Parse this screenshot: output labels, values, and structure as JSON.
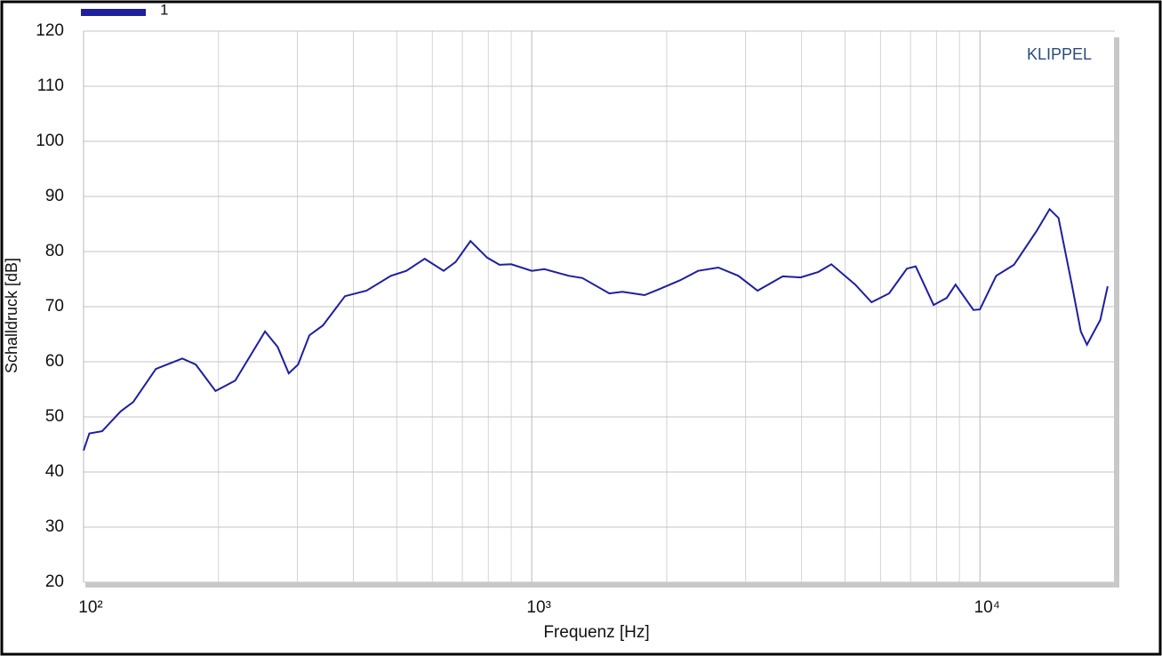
{
  "chart_data": {
    "type": "line",
    "x_label": "Frequenz [Hz]",
    "y_label": "Schalldruck  [dB]",
    "annotation": "KLIPPEL",
    "log_x": true,
    "grid": true,
    "legend": "top-left",
    "xlim": [
      100,
      20000
    ],
    "ylim": [
      20,
      120
    ],
    "xticks": [
      {
        "value": 100,
        "label": "10²"
      },
      {
        "value": 1000,
        "label": "10³"
      },
      {
        "value": 10000,
        "label": "10⁴"
      }
    ],
    "x_minor_ticks": [
      200,
      300,
      400,
      500,
      600,
      700,
      800,
      900,
      2000,
      3000,
      4000,
      5000,
      6000,
      7000,
      8000,
      9000
    ],
    "yticks": [
      20,
      30,
      40,
      50,
      60,
      70,
      80,
      90,
      100,
      110,
      120
    ],
    "x": [
      100,
      103,
      110,
      121,
      129,
      145,
      166,
      178,
      197,
      218,
      254,
      271,
      287,
      301,
      319,
      342,
      383,
      428,
      485,
      525,
      577,
      636,
      676,
      730,
      795,
      847,
      900,
      1000,
      1067,
      1210,
      1297,
      1490,
      1593,
      1785,
      1914,
      2145,
      2350,
      2608,
      2890,
      3190,
      3630,
      3980,
      4360,
      4660,
      5270,
      5730,
      6270,
      6870,
      7190,
      7880,
      8430,
      8820,
      9670,
      10000,
      10870,
      11910,
      13370,
      14300,
      14970,
      16030,
      16790,
      17330,
      18560,
      19270
    ],
    "series": [
      {
        "name": "1",
        "color": "#1f1f9e",
        "values": [
          43.9,
          47,
          47.4,
          51,
          52.7,
          58.7,
          60.6,
          59.5,
          54.7,
          56.6,
          65.5,
          62.7,
          57.9,
          59.5,
          64.8,
          66.6,
          71.9,
          72.9,
          75.6,
          76.5,
          78.7,
          76.5,
          78.1,
          81.9,
          78.9,
          77.6,
          77.7,
          76.5,
          76.8,
          75.6,
          75.2,
          72.4,
          72.7,
          72.1,
          73.1,
          74.8,
          76.5,
          77.1,
          75.6,
          72.9,
          75.5,
          75.3,
          76.3,
          77.7,
          74,
          70.8,
          72.4,
          76.9,
          77.3,
          70.3,
          71.6,
          74,
          69.4,
          69.5,
          75.6,
          77.6,
          83.7,
          87.7,
          86.1,
          74,
          65.5,
          63.1,
          67.6,
          73.7
        ]
      }
    ]
  }
}
